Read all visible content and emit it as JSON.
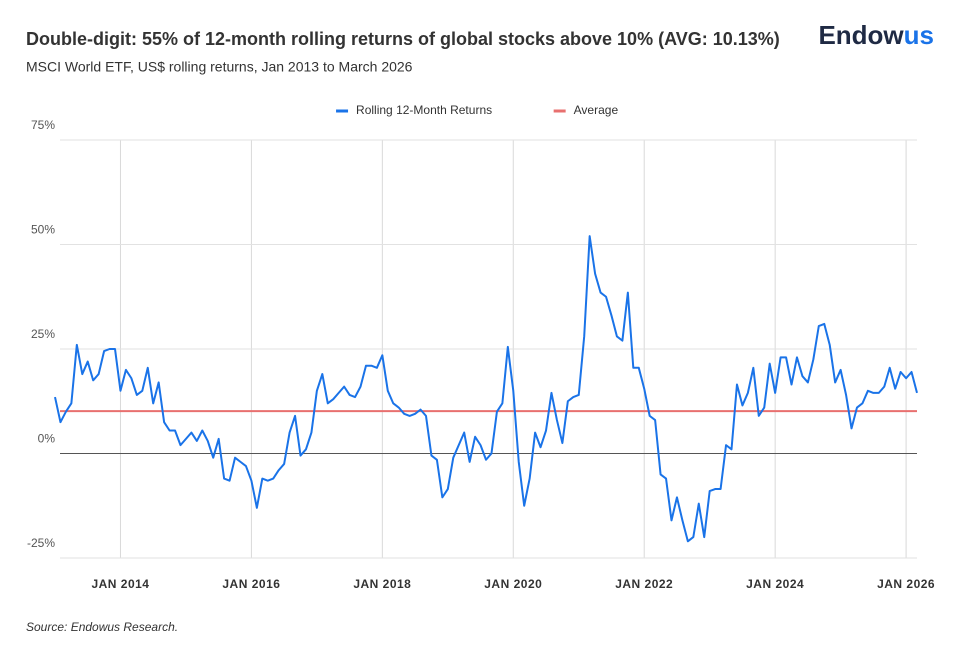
{
  "chart_data": {
    "type": "line",
    "title": "Double-digit: 55% of 12-month rolling returns of global stocks above 10% (AVG: 10.13%)",
    "subtitle": "MSCI World ETF, US$ rolling returns, Jan 2013 to March 2026",
    "logo": [
      "Endow",
      "us"
    ],
    "source": "Source: Endowus Research.",
    "x": [
      "2013-01",
      "2013-02",
      "2013-03",
      "2013-04",
      "2013-05",
      "2013-06",
      "2013-07",
      "2013-08",
      "2013-09",
      "2013-10",
      "2013-11",
      "2013-12",
      "2014-01",
      "2014-02",
      "2014-03",
      "2014-04",
      "2014-05",
      "2014-06",
      "2014-07",
      "2014-08",
      "2014-09",
      "2014-10",
      "2014-11",
      "2014-12",
      "2015-01",
      "2015-02",
      "2015-03",
      "2015-04",
      "2015-05",
      "2015-06",
      "2015-07",
      "2015-08",
      "2015-09",
      "2015-10",
      "2015-11",
      "2015-12",
      "2016-01",
      "2016-02",
      "2016-03",
      "2016-04",
      "2016-05",
      "2016-06",
      "2016-07",
      "2016-08",
      "2016-09",
      "2016-10",
      "2016-11",
      "2016-12",
      "2017-01",
      "2017-02",
      "2017-03",
      "2017-04",
      "2017-05",
      "2017-06",
      "2017-07",
      "2017-08",
      "2017-09",
      "2017-10",
      "2017-11",
      "2017-12",
      "2018-01",
      "2018-02",
      "2018-03",
      "2018-04",
      "2018-05",
      "2018-06",
      "2018-07",
      "2018-08",
      "2018-09",
      "2018-10",
      "2018-11",
      "2018-12",
      "2019-01",
      "2019-02",
      "2019-03",
      "2019-04",
      "2019-05",
      "2019-06",
      "2019-07",
      "2019-08",
      "2019-09",
      "2019-10",
      "2019-11",
      "2019-12",
      "2020-01",
      "2020-02",
      "2020-03",
      "2020-04",
      "2020-05",
      "2020-06",
      "2020-07",
      "2020-08",
      "2020-09",
      "2020-10",
      "2020-11",
      "2020-12",
      "2021-01",
      "2021-02",
      "2021-03",
      "2021-04",
      "2021-05",
      "2021-06",
      "2021-07",
      "2021-08",
      "2021-09",
      "2021-10",
      "2021-11",
      "2021-12",
      "2022-01",
      "2022-02",
      "2022-03",
      "2022-04",
      "2022-05",
      "2022-06",
      "2022-07",
      "2022-08",
      "2022-09",
      "2022-10",
      "2022-11",
      "2022-12",
      "2023-01",
      "2023-02",
      "2023-03",
      "2023-04",
      "2023-05",
      "2023-06",
      "2023-07",
      "2023-08",
      "2023-09",
      "2023-10",
      "2023-11",
      "2023-12",
      "2024-01",
      "2024-02",
      "2024-03",
      "2024-04",
      "2024-05",
      "2024-06",
      "2024-07",
      "2024-08",
      "2024-09",
      "2024-10",
      "2024-11",
      "2024-12",
      "2025-01",
      "2025-02",
      "2025-03",
      "2025-04",
      "2025-05",
      "2025-06",
      "2025-07",
      "2025-08",
      "2025-09",
      "2025-10",
      "2025-11",
      "2025-12",
      "2026-01",
      "2026-02",
      "2026-03"
    ],
    "series": [
      {
        "name": "Rolling 12-Month Returns",
        "color": "#1a73e8",
        "values": [
          13.5,
          7.5,
          10,
          12,
          26,
          19,
          22,
          17.5,
          19,
          24.5,
          25,
          25,
          15,
          20,
          18,
          14,
          15,
          20.5,
          12,
          17,
          7.5,
          5.5,
          5.5,
          2,
          3.5,
          5,
          3,
          5.5,
          3,
          -1,
          3.5,
          -6,
          -6.5,
          -1,
          -2,
          -3,
          -6.5,
          -13,
          -6,
          -6.5,
          -6,
          -4,
          -2.5,
          5,
          9,
          -0.5,
          1,
          5,
          15,
          19,
          12,
          13,
          14.5,
          16,
          14,
          13.5,
          16,
          21,
          21,
          20.5,
          23.5,
          15,
          12,
          11,
          9.5,
          9,
          9.5,
          10.5,
          9,
          -0.5,
          -1.5,
          -10.5,
          -8.5,
          -1,
          2,
          5,
          -2,
          4,
          2,
          -1.5,
          0,
          10,
          12,
          25.5,
          15,
          -2,
          -12.5,
          -6,
          5,
          1.5,
          5.5,
          14.5,
          8,
          2.5,
          12.5,
          13.5,
          14,
          28,
          52,
          43,
          38.5,
          37.5,
          33,
          28,
          27,
          38.5,
          20.5,
          20.5,
          15.5,
          9,
          8,
          -5,
          -6,
          -16,
          -10.5,
          -16,
          -21,
          -20,
          -12,
          -20,
          -9,
          -8.5,
          -8.5,
          2,
          1,
          16.5,
          11.5,
          14.5,
          20.5,
          9,
          11,
          21.5,
          14.5,
          23,
          23,
          16.5,
          23,
          18.5,
          17,
          22.5,
          30.5,
          31,
          26,
          17,
          20,
          14,
          6,
          11,
          12,
          15,
          14.5,
          14.5,
          16,
          20.5,
          15.5,
          19.5,
          18,
          19.5,
          14.5
        ]
      },
      {
        "name": "Average",
        "color": "#e8706f",
        "value": 10.13
      }
    ],
    "xlim": [
      "2013-01",
      "2026-03"
    ],
    "xticks": [
      {
        "value": "2014-01",
        "label": "JAN 2014"
      },
      {
        "value": "2016-01",
        "label": "JAN 2016"
      },
      {
        "value": "2018-01",
        "label": "JAN 2018"
      },
      {
        "value": "2020-01",
        "label": "JAN 2020"
      },
      {
        "value": "2022-01",
        "label": "JAN 2022"
      },
      {
        "value": "2024-01",
        "label": "JAN 2024"
      },
      {
        "value": "2026-01",
        "label": "JAN 2026"
      }
    ],
    "ylim": [
      -25,
      75
    ],
    "yticks": [
      {
        "value": -25,
        "label": "-25%"
      },
      {
        "value": 0,
        "label": "0%"
      },
      {
        "value": 25,
        "label": "25%"
      },
      {
        "value": 50,
        "label": "50%"
      },
      {
        "value": 75,
        "label": "75%"
      }
    ],
    "grid": true,
    "legend": "top"
  }
}
